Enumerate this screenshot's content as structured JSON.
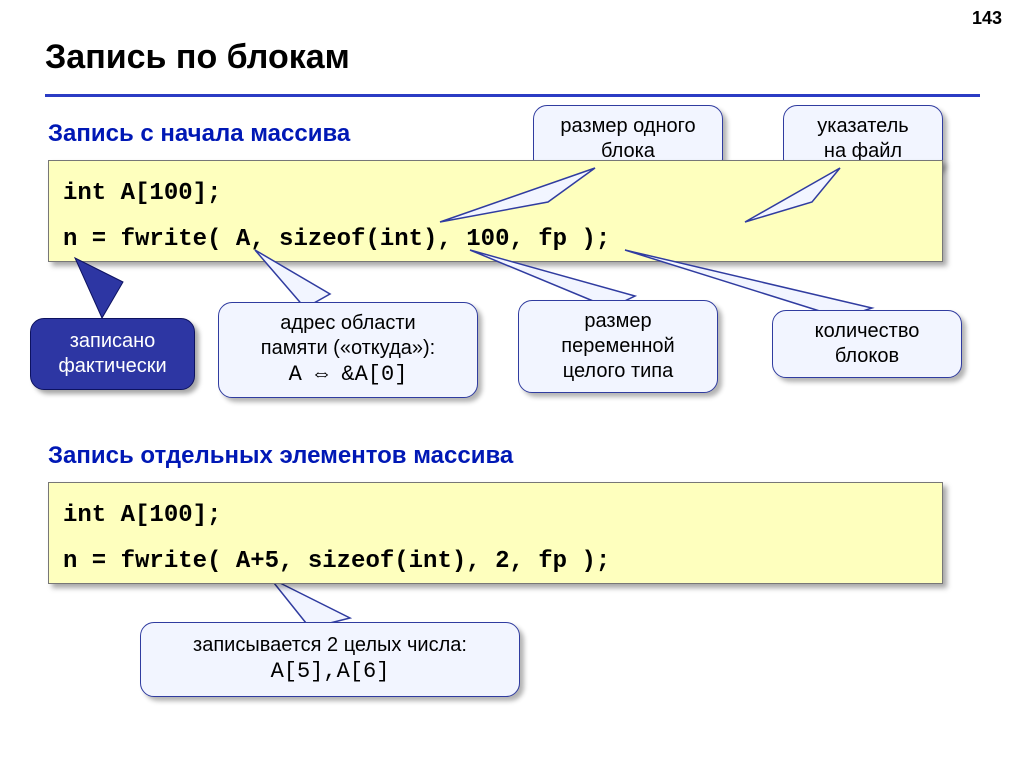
{
  "page_number": "143",
  "title": "Запись по блокам",
  "subtitle1": "Запись с начала массива",
  "code1_line1": "int A[100];",
  "code1_line2": "n = fwrite( A, sizeof(int), 100, fp );",
  "subtitle2": "Запись отдельных элементов массива",
  "code2_line1": "int A[100];",
  "code2_line2": "n = fwrite( A+5, sizeof(int), 2, fp );",
  "callouts": {
    "block_size": "размер одного\nблока",
    "file_ptr": "указатель\nна файл",
    "written": "записано\nфактически",
    "addr_line1": "адрес области",
    "addr_line2": "памяти («откуда»):",
    "addr_code": "A ⇔ &A[0]",
    "var_size": "размер\nпеременной\nцелого типа",
    "block_count": "количество\nблоков",
    "two_ints_line1": "записывается 2 целых числа:",
    "two_ints_code": "A[5],A[6]"
  },
  "colors": {
    "accent": "#0018b5",
    "hr": "#2b3cc4",
    "code_bg": "#feffbe",
    "callout_bg": "#f2f5ff",
    "callout_border": "#303ca0",
    "dark_bg": "#2d36a3"
  }
}
